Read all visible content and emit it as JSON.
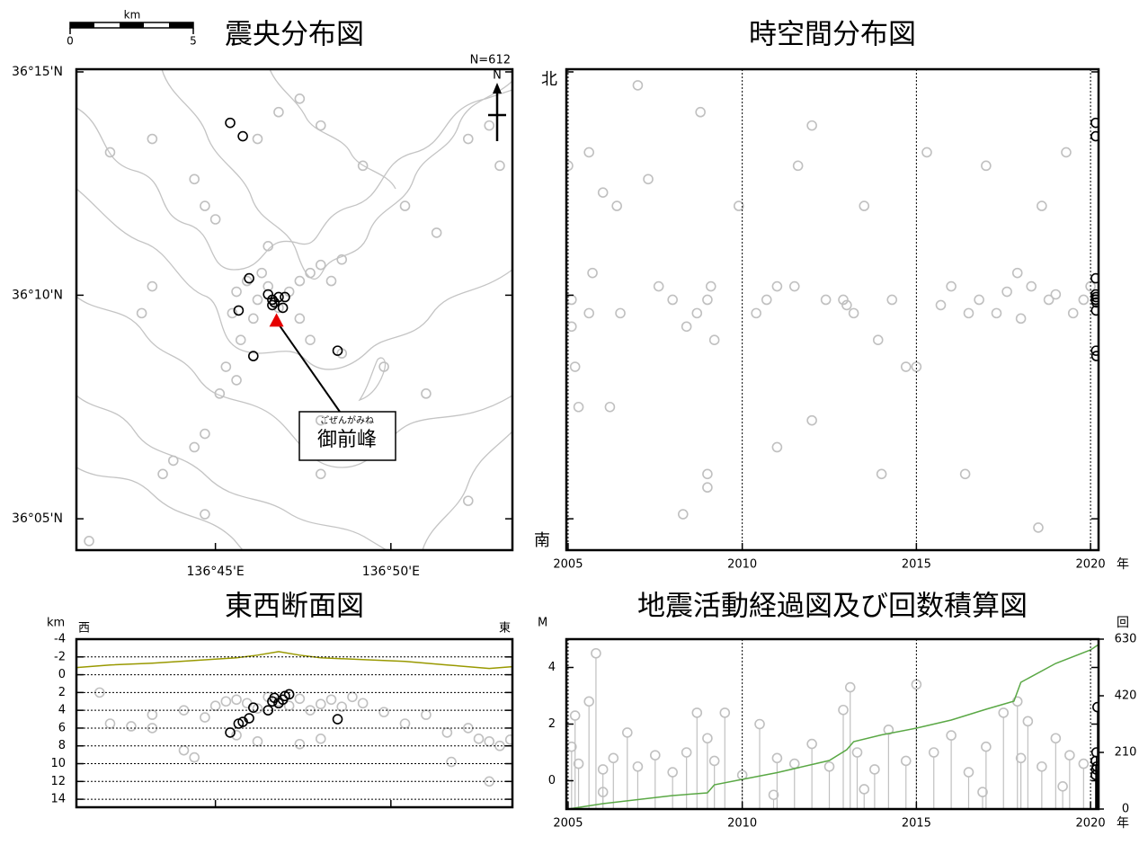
{
  "chart_data": [
    {
      "type": "map",
      "title": "震央分布図",
      "annotation": "N=612",
      "scale_bar": {
        "label": "km",
        "ticks": [
          0,
          5
        ]
      },
      "north_label": "N",
      "summit": {
        "x": 136.779,
        "y": 36.157,
        "color": "#e60000",
        "reading": "ごぜんがみね",
        "name": "御前峰"
      },
      "xlim": [
        136.684,
        136.891
      ],
      "ylim": [
        36.0716,
        36.251
      ],
      "xticks": [
        {
          "value": 136.75,
          "label": "136°45'E"
        },
        {
          "value": 136.8333,
          "label": "136°50'E"
        }
      ],
      "yticks": [
        {
          "value": 36.25,
          "label": "36°15'N"
        },
        {
          "value": 36.1667,
          "label": "36°10'N"
        },
        {
          "value": 36.0833,
          "label": "36°05'N"
        }
      ],
      "series": [
        {
          "color": "#c0c0c0",
          "x": [
            136.76,
            136.765,
            136.77,
            136.775,
            136.78,
            136.768,
            136.772,
            136.762,
            136.758,
            136.785,
            136.79,
            136.795,
            136.8,
            136.805,
            136.81,
            136.79,
            136.795,
            136.755,
            136.76,
            136.752,
            136.745,
            136.74,
            136.73,
            136.725,
            136.715,
            136.72,
            136.745,
            136.75,
            136.74,
            136.77,
            136.78,
            136.79,
            136.8,
            136.82,
            136.84,
            136.855,
            136.87,
            136.88,
            136.885,
            136.81,
            136.83,
            136.85,
            136.8,
            136.775,
            136.7,
            136.72,
            136.69,
            136.87,
            136.745,
            136.8
          ],
          "values": [
            36.168,
            36.172,
            36.165,
            36.17,
            36.162,
            36.158,
            36.175,
            36.15,
            36.16,
            36.168,
            36.172,
            36.175,
            36.178,
            36.172,
            36.18,
            36.158,
            36.15,
            36.14,
            36.135,
            36.13,
            36.115,
            36.11,
            36.105,
            36.1,
            36.16,
            36.17,
            36.2,
            36.195,
            36.21,
            36.225,
            36.235,
            36.24,
            36.23,
            36.215,
            36.2,
            36.19,
            36.225,
            36.23,
            36.215,
            36.145,
            36.14,
            36.13,
            36.12,
            36.185,
            36.22,
            36.225,
            36.075,
            36.09,
            36.085,
            36.1
          ]
        },
        {
          "color": "#000000",
          "x": [
            136.757,
            136.763,
            136.766,
            136.761,
            136.768,
            136.808,
            136.775,
            136.777,
            136.778,
            136.78,
            136.783,
            136.782,
            136.777
          ],
          "values": [
            36.231,
            36.226,
            36.173,
            36.161,
            36.144,
            36.146,
            36.167,
            36.165,
            36.164,
            36.166,
            36.166,
            36.162,
            36.163
          ]
        }
      ]
    },
    {
      "type": "scatter",
      "title": "時空間分布図",
      "ylabel_top": "北",
      "ylabel_bottom": "南",
      "x_unit": "年",
      "xgrid": true,
      "xlim": [
        2004.95,
        2020.23
      ],
      "ylim": [
        36.0716,
        36.251
      ],
      "xticks": [
        2005,
        2010,
        2015,
        2020
      ],
      "ytick_marks": [
        36.25,
        36.1667,
        36.0833
      ],
      "series": [
        {
          "color": "#c0c0c0",
          "x": [
            2005.0,
            2005.1,
            2005.1,
            2005.2,
            2005.3,
            2005.6,
            2005.7,
            2005.6,
            2006.0,
            2006.4,
            2006.5,
            2007.0,
            2007.3,
            2007.6,
            2008.0,
            2008.4,
            2008.7,
            2008.8,
            2009.0,
            2009.1,
            2009.0,
            2009.2,
            2009.9,
            2010.4,
            2010.7,
            2011.0,
            2011.5,
            2011.6,
            2012.0,
            2012.4,
            2012.9,
            2013.0,
            2013.2,
            2013.5,
            2013.9,
            2014.3,
            2014.7,
            2015.0,
            2015.3,
            2015.7,
            2016.0,
            2016.5,
            2016.8,
            2017.0,
            2017.3,
            2017.6,
            2017.9,
            2018.0,
            2018.3,
            2018.6,
            2018.8,
            2019.0,
            2019.3,
            2019.5,
            2019.8,
            2020.0,
            2006.2,
            2009.0,
            2012.0,
            2016.4,
            2018.5,
            2008.3,
            2014.0,
            2011.0
          ],
          "values": [
            36.215,
            36.165,
            36.155,
            36.14,
            36.125,
            36.16,
            36.175,
            36.22,
            36.205,
            36.2,
            36.16,
            36.245,
            36.21,
            36.17,
            36.165,
            36.155,
            36.16,
            36.235,
            36.165,
            36.17,
            36.1,
            36.15,
            36.2,
            36.16,
            36.165,
            36.17,
            36.17,
            36.215,
            36.23,
            36.165,
            36.165,
            36.163,
            36.16,
            36.2,
            36.15,
            36.165,
            36.14,
            36.14,
            36.22,
            36.163,
            36.17,
            36.16,
            36.165,
            36.215,
            36.16,
            36.168,
            36.175,
            36.158,
            36.17,
            36.2,
            36.165,
            36.167,
            36.22,
            36.16,
            36.165,
            36.17,
            36.125,
            36.095,
            36.12,
            36.1,
            36.08,
            36.085,
            36.1,
            36.11
          ]
        },
        {
          "color": "#000000",
          "x": [
            2020.15,
            2020.15,
            2020.15,
            2020.15,
            2020.15,
            2020.16,
            2020.16,
            2020.17,
            2020.17,
            2020.16
          ],
          "values": [
            36.231,
            36.226,
            36.173,
            36.167,
            36.165,
            36.161,
            36.146,
            36.144,
            36.164,
            36.166
          ]
        }
      ]
    },
    {
      "type": "scatter",
      "title": "東西断面図",
      "ylabel": "km",
      "left_label": "西",
      "right_label": "東",
      "yreverse": true,
      "ygrid": true,
      "xlim": [
        136.684,
        136.891
      ],
      "ylim": [
        -4,
        14.9
      ],
      "xtick_marks": [
        136.75,
        136.8333
      ],
      "yticks": [
        -4,
        -2,
        0,
        2,
        4,
        6,
        8,
        10,
        12,
        14
      ],
      "series": [
        {
          "color": "#c0c0c0",
          "x": [
            136.7,
            136.71,
            136.72,
            136.735,
            136.745,
            136.75,
            136.755,
            136.76,
            136.765,
            136.77,
            136.775,
            136.78,
            136.785,
            136.79,
            136.795,
            136.8,
            136.805,
            136.81,
            136.815,
            136.82,
            136.83,
            136.84,
            136.85,
            136.86,
            136.87,
            136.875,
            136.88,
            136.885,
            136.89,
            136.862,
            136.88,
            136.76,
            136.77,
            136.79,
            136.735,
            136.74,
            136.8,
            136.72,
            136.695
          ],
          "values": [
            5.5,
            5.8,
            4.5,
            4.0,
            4.8,
            3.5,
            3.0,
            2.8,
            3.2,
            3.8,
            2.5,
            3.0,
            3.5,
            2.7,
            4.0,
            3.3,
            2.8,
            3.6,
            2.5,
            3.2,
            4.2,
            5.5,
            4.5,
            6.5,
            6.0,
            7.2,
            7.5,
            8.0,
            7.3,
            9.8,
            12.0,
            6.8,
            7.5,
            7.8,
            8.5,
            9.3,
            7.2,
            6.0,
            2.0
          ]
        },
        {
          "color": "#000000",
          "x": [
            136.757,
            136.761,
            136.763,
            136.766,
            136.768,
            136.775,
            136.777,
            136.778,
            136.78,
            136.782,
            136.783,
            136.808,
            136.785
          ],
          "values": [
            6.5,
            5.5,
            5.3,
            4.9,
            3.7,
            4.0,
            3.0,
            2.6,
            3.2,
            2.8,
            2.4,
            5.0,
            2.2
          ]
        },
        {
          "color": "#999900",
          "style": "line",
          "x": [
            136.684,
            136.7,
            136.72,
            136.74,
            136.76,
            136.77,
            136.78,
            136.79,
            136.8,
            136.82,
            136.84,
            136.86,
            136.88,
            136.891
          ],
          "values": [
            -0.8,
            -1.1,
            -1.3,
            -1.6,
            -1.9,
            -2.2,
            -2.6,
            -2.2,
            -1.9,
            -1.7,
            -1.5,
            -1.1,
            -0.7,
            -0.9
          ]
        }
      ]
    },
    {
      "type": "stem",
      "title": "地震活動経過図及び回数積算図",
      "ylabel": "M",
      "y2label": "回",
      "x_unit": "年",
      "xgrid": true,
      "xlim": [
        2004.95,
        2020.23
      ],
      "ylim": [
        -1,
        5
      ],
      "y2lim": [
        0,
        630
      ],
      "xticks": [
        2005,
        2010,
        2015,
        2020
      ],
      "yticks": [
        0,
        2,
        4
      ],
      "y2ticks": [
        0,
        210,
        420,
        630
      ],
      "series": [
        {
          "color": "#c0c0c0",
          "x": [
            2005.1,
            2005.2,
            2005.3,
            2005.6,
            2005.8,
            2006.0,
            2006.3,
            2006.7,
            2007.0,
            2007.5,
            2008.0,
            2008.4,
            2008.7,
            2009.0,
            2009.2,
            2009.5,
            2010.0,
            2010.5,
            2011.0,
            2011.5,
            2012.0,
            2012.5,
            2012.9,
            2013.1,
            2013.3,
            2013.8,
            2014.2,
            2014.7,
            2015.0,
            2015.5,
            2016.0,
            2016.5,
            2017.0,
            2017.5,
            2017.9,
            2018.0,
            2018.2,
            2018.6,
            2019.0,
            2019.4,
            2019.8,
            2006.0,
            2010.9,
            2013.5,
            2016.9,
            2019.2
          ],
          "values": [
            1.2,
            2.3,
            0.6,
            2.8,
            4.5,
            0.4,
            0.8,
            1.7,
            0.5,
            0.9,
            0.3,
            1.0,
            2.4,
            1.5,
            0.7,
            2.4,
            0.2,
            2.0,
            0.8,
            0.6,
            1.3,
            0.5,
            2.5,
            3.3,
            1.0,
            0.4,
            1.8,
            0.7,
            3.4,
            1.0,
            1.6,
            0.3,
            1.2,
            2.4,
            2.8,
            0.8,
            2.1,
            0.5,
            1.5,
            0.9,
            0.6,
            -0.4,
            -0.5,
            -0.3,
            -0.4,
            -0.2
          ]
        },
        {
          "color": "#000000",
          "x": [
            2020.15,
            2020.15,
            2020.16,
            2020.17,
            2020.18,
            2020.2
          ],
          "values": [
            0.2,
            0.7,
            0.4,
            1.0,
            0.5,
            2.6
          ]
        },
        {
          "color": "#5aa845",
          "style": "line",
          "axis": "y2",
          "x": [
            2005,
            2006,
            2008,
            2009,
            2009.2,
            2010,
            2011,
            2012,
            2012.5,
            2013,
            2013.2,
            2014,
            2015,
            2016,
            2017,
            2017.8,
            2018,
            2019,
            2020,
            2020.23
          ],
          "values": [
            0,
            20,
            50,
            60,
            90,
            110,
            135,
            165,
            180,
            220,
            250,
            275,
            300,
            330,
            370,
            400,
            470,
            540,
            590,
            610
          ]
        }
      ]
    }
  ]
}
